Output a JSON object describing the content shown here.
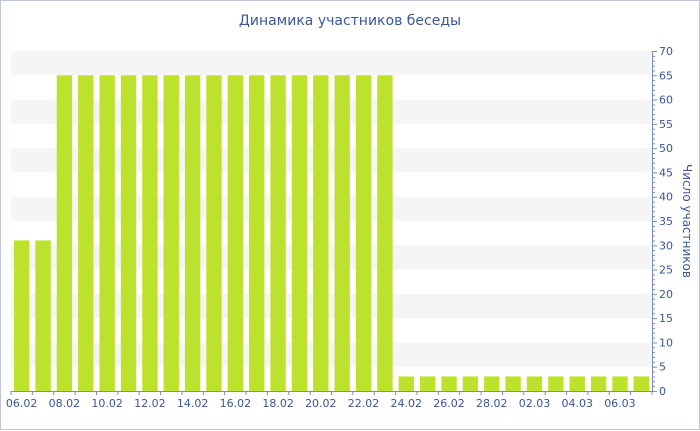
{
  "chart_data": {
    "type": "bar",
    "title": "Динамика участников беседы",
    "ylabel": "Число участников",
    "xlabel": "",
    "ylim": [
      0,
      70
    ],
    "y_ticks": [
      0,
      5,
      10,
      15,
      20,
      25,
      30,
      35,
      40,
      45,
      50,
      55,
      60,
      65,
      70
    ],
    "y_axis_position": "right",
    "grid": "alternating horizontal bands",
    "bar_color": "#bde22e",
    "categories": [
      "06.02",
      "07.02",
      "08.02",
      "09.02",
      "10.02",
      "11.02",
      "12.02",
      "13.02",
      "14.02",
      "15.02",
      "16.02",
      "17.02",
      "18.02",
      "19.02",
      "20.02",
      "21.02",
      "22.02",
      "23.02",
      "24.02",
      "25.02",
      "26.02",
      "27.02",
      "28.02",
      "01.03",
      "02.03",
      "03.03",
      "04.03",
      "05.03",
      "06.03",
      "07.03"
    ],
    "values": [
      31,
      31,
      65,
      65,
      65,
      65,
      65,
      65,
      65,
      65,
      65,
      65,
      65,
      65,
      65,
      65,
      65,
      65,
      3,
      3,
      3,
      3,
      3,
      3,
      3,
      3,
      3,
      3,
      3,
      3
    ],
    "x_tick_labels": [
      "06.02",
      "08.02",
      "10.02",
      "12.02",
      "14.02",
      "16.02",
      "18.02",
      "20.02",
      "22.02",
      "24.02",
      "26.02",
      "28.02",
      "02.03",
      "04.03",
      "06.03"
    ]
  }
}
